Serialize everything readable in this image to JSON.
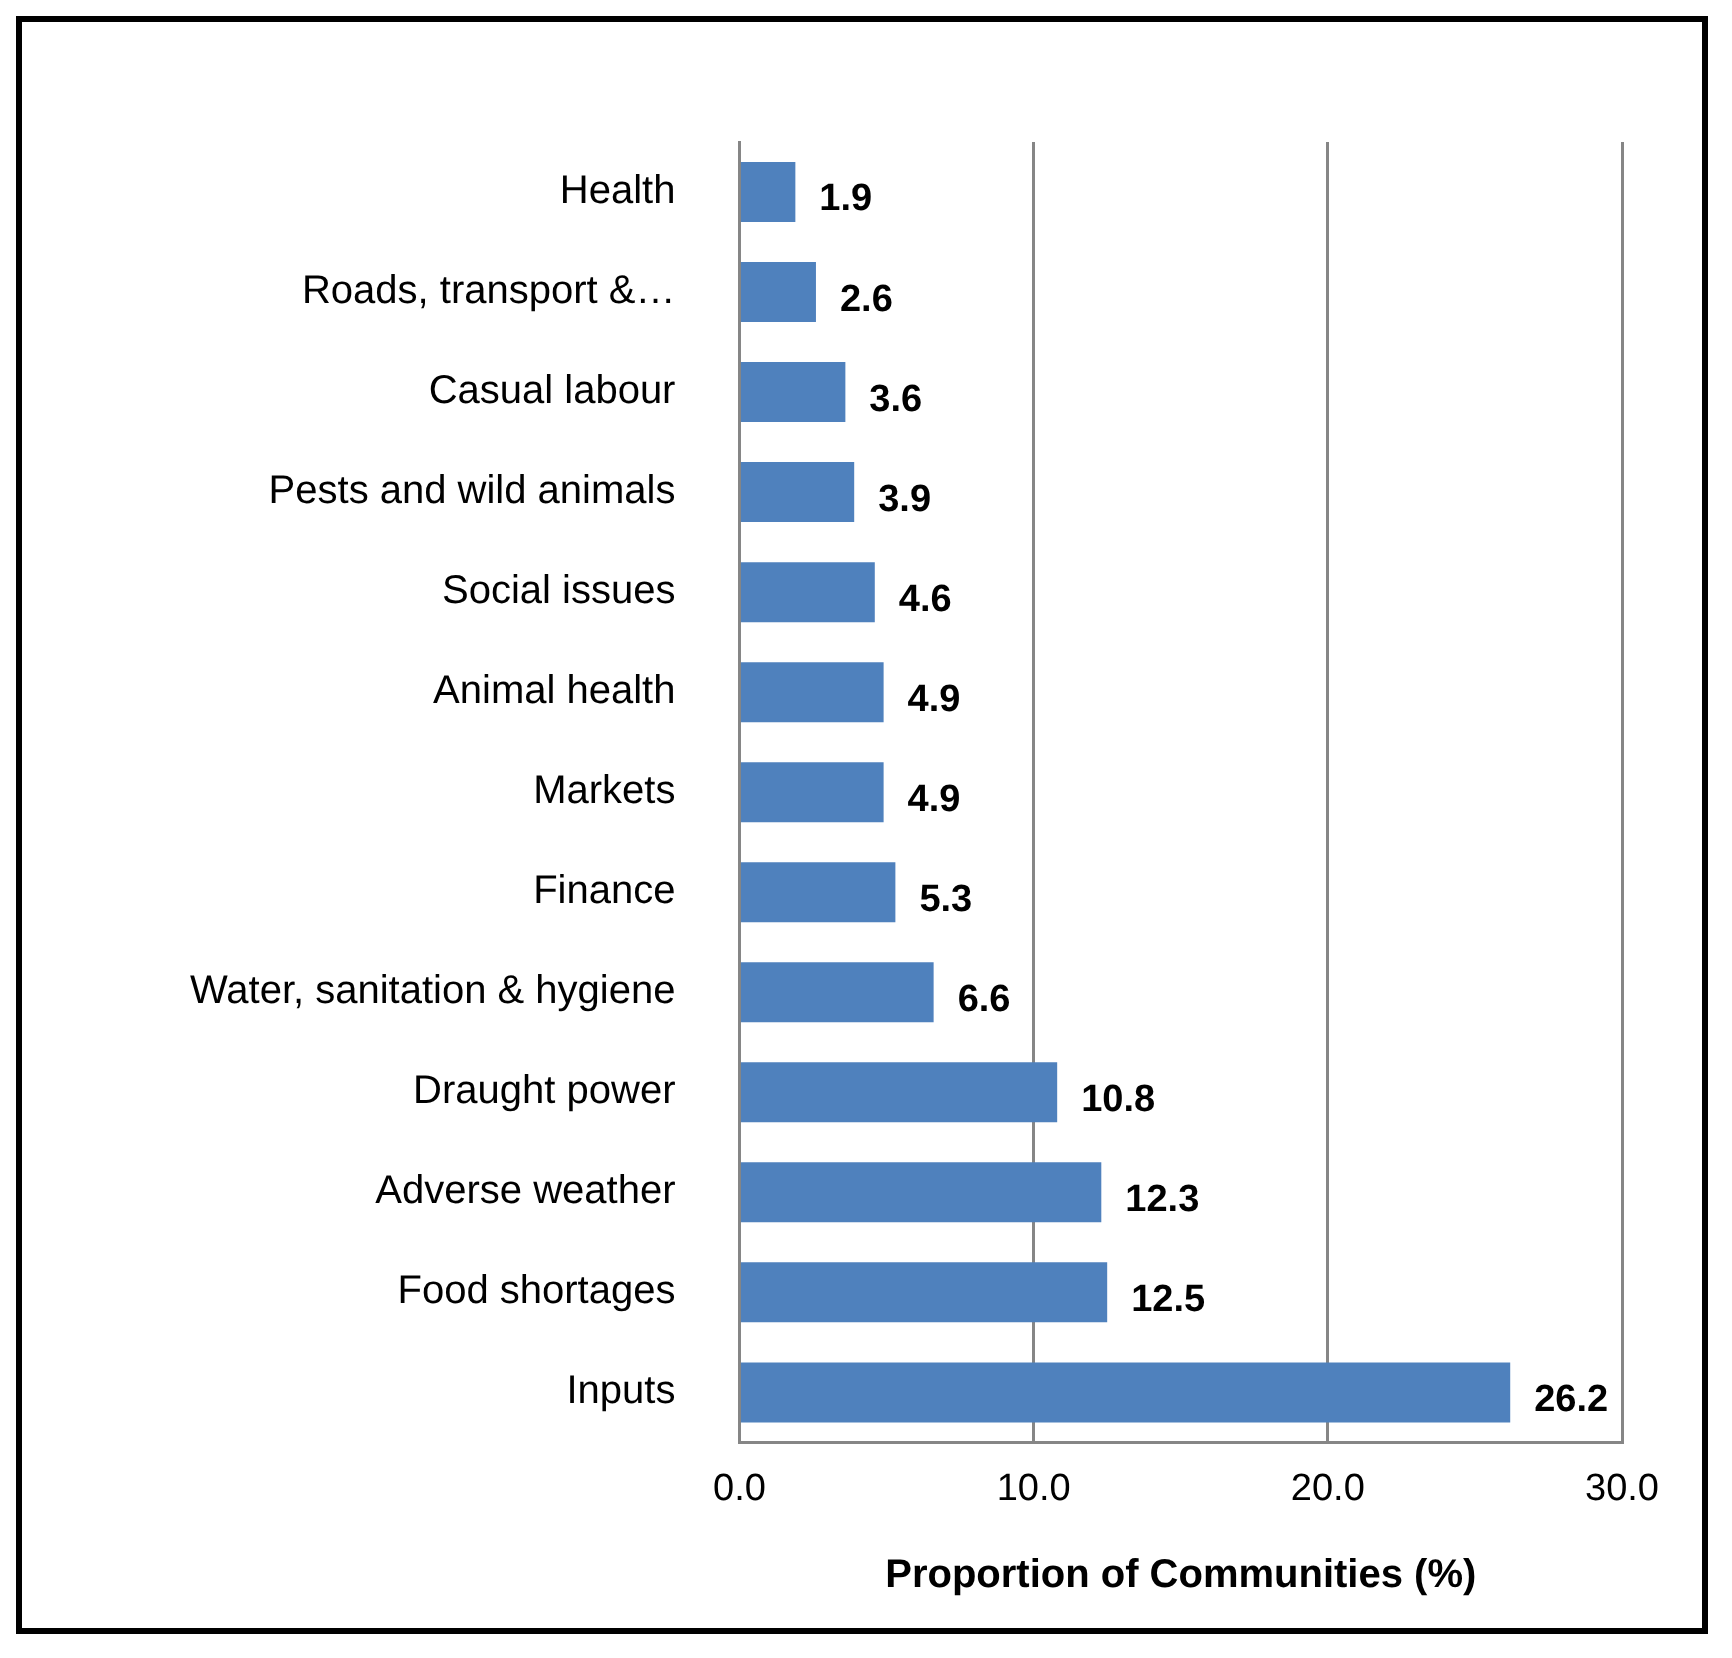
{
  "chart_data": {
    "type": "bar",
    "orientation": "horizontal",
    "xlabel": "Proportion of Communities (%)",
    "categories": [
      "Health",
      "Roads, transport &…",
      "Casual labour",
      "Pests and wild animals",
      "Social issues",
      "Animal health",
      "Markets",
      "Finance",
      "Water, sanitation & hygiene",
      "Draught power",
      "Adverse weather",
      "Food shortages",
      "Inputs"
    ],
    "values": [
      1.9,
      2.6,
      3.6,
      3.9,
      4.6,
      4.9,
      4.9,
      5.3,
      6.6,
      10.8,
      12.3,
      12.5,
      26.2
    ],
    "color": "#4f81bd",
    "xlim": [
      0,
      30
    ],
    "xticks": [
      {
        "value": 0,
        "label": "0.0"
      },
      {
        "value": 10,
        "label": "10.0"
      },
      {
        "value": 20,
        "label": "20.0"
      },
      {
        "value": 30,
        "label": "30.0"
      }
    ],
    "grid": "x",
    "data_labels": true
  }
}
